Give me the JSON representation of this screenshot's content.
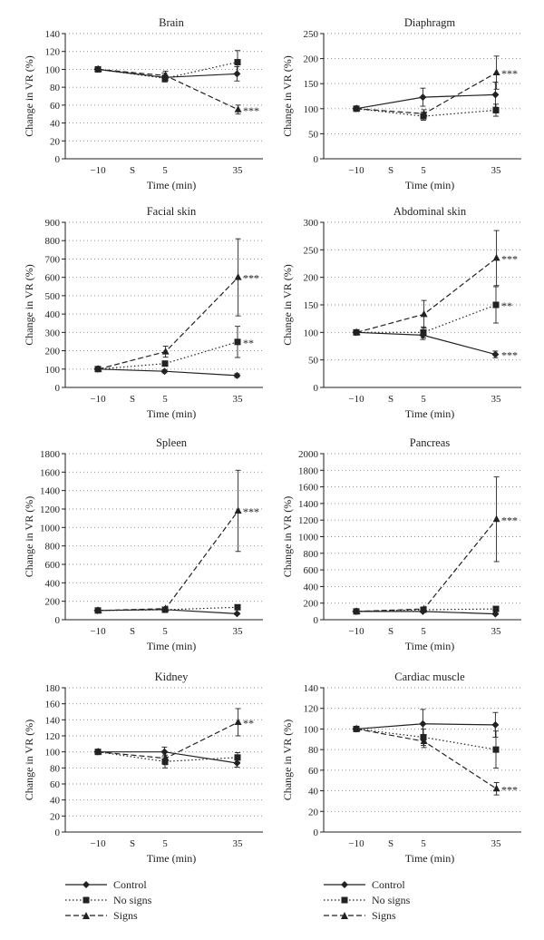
{
  "chart_data": [
    {
      "type": "line",
      "title": "Brain",
      "xlabel": "Time (min)",
      "ylabel": "Change in VR (%)",
      "ylim": [
        0,
        140
      ],
      "yticks": [
        0,
        20,
        40,
        60,
        80,
        100,
        120,
        140
      ],
      "x_ticks": [
        "−10",
        "S",
        "5",
        "35"
      ],
      "series": [
        {
          "name": "Control",
          "x": [
            "−10",
            "5",
            "35"
          ],
          "values": [
            100,
            91,
            95
          ],
          "err": [
            null,
            5,
            8
          ]
        },
        {
          "name": "No signs",
          "x": [
            "−10",
            "5",
            "35"
          ],
          "values": [
            100,
            90,
            108
          ],
          "err": [
            null,
            4,
            13
          ]
        },
        {
          "name": "Signs",
          "x": [
            "−10",
            "5",
            "35"
          ],
          "values": [
            100,
            93,
            55
          ],
          "err": [
            null,
            5,
            5
          ]
        }
      ],
      "annotations": [
        {
          "text": "***",
          "x": "35",
          "y": 55
        }
      ]
    },
    {
      "type": "line",
      "title": "Diaphragm",
      "xlabel": "Time (min)",
      "ylabel": "Change in VR (%)",
      "ylim": [
        0,
        250
      ],
      "yticks": [
        0,
        50,
        100,
        150,
        200,
        250
      ],
      "x_ticks": [
        "−10",
        "S",
        "5",
        "35"
      ],
      "series": [
        {
          "name": "Control",
          "x": [
            "−10",
            "5",
            "35"
          ],
          "values": [
            100,
            123,
            128
          ],
          "err": [
            null,
            18,
            25
          ]
        },
        {
          "name": "No signs",
          "x": [
            "−10",
            "5",
            "35"
          ],
          "values": [
            100,
            85,
            97
          ],
          "err": [
            null,
            8,
            12
          ]
        },
        {
          "name": "Signs",
          "x": [
            "−10",
            "5",
            "35"
          ],
          "values": [
            100,
            90,
            172
          ],
          "err": [
            null,
            8,
            33
          ]
        }
      ],
      "annotations": [
        {
          "text": "***",
          "x": "35",
          "y": 172
        }
      ]
    },
    {
      "type": "line",
      "title": "Facial skin",
      "xlabel": "Time (min)",
      "ylabel": "Change in VR (%)",
      "ylim": [
        0,
        900
      ],
      "yticks": [
        0,
        100,
        200,
        300,
        400,
        500,
        600,
        700,
        800,
        900
      ],
      "x_ticks": [
        "−10",
        "S",
        "5",
        "35"
      ],
      "series": [
        {
          "name": "Control",
          "x": [
            "−10",
            "5",
            "35"
          ],
          "values": [
            100,
            88,
            65
          ],
          "err": [
            null,
            8,
            10
          ]
        },
        {
          "name": "No signs",
          "x": [
            "−10",
            "5",
            "35"
          ],
          "values": [
            100,
            130,
            248
          ],
          "err": [
            null,
            12,
            85
          ]
        },
        {
          "name": "Signs",
          "x": [
            "−10",
            "5",
            "35"
          ],
          "values": [
            100,
            195,
            600
          ],
          "err": [
            null,
            30,
            210
          ]
        }
      ],
      "annotations": [
        {
          "text": "***",
          "x": "35",
          "y": 600
        },
        {
          "text": "**",
          "x": "35",
          "y": 248
        }
      ]
    },
    {
      "type": "line",
      "title": "Abdominal skin",
      "xlabel": "Time (min)",
      "ylabel": "Change in VR (%)",
      "ylim": [
        0,
        300
      ],
      "yticks": [
        0,
        50,
        100,
        150,
        200,
        250,
        300
      ],
      "x_ticks": [
        "−10",
        "S",
        "5",
        "35"
      ],
      "series": [
        {
          "name": "Control",
          "x": [
            "−10",
            "5",
            "35"
          ],
          "values": [
            100,
            95,
            60
          ],
          "err": [
            null,
            8,
            6
          ]
        },
        {
          "name": "No signs",
          "x": [
            "−10",
            "5",
            "35"
          ],
          "values": [
            100,
            100,
            150
          ],
          "err": [
            null,
            10,
            33
          ]
        },
        {
          "name": "Signs",
          "x": [
            "−10",
            "5",
            "35"
          ],
          "values": [
            100,
            133,
            235
          ],
          "err": [
            null,
            25,
            50
          ]
        }
      ],
      "annotations": [
        {
          "text": "***",
          "x": "35",
          "y": 235
        },
        {
          "text": "**",
          "x": "35",
          "y": 150
        },
        {
          "text": "***",
          "x": "35",
          "y": 60
        }
      ]
    },
    {
      "type": "line",
      "title": "Spleen",
      "xlabel": "Time (min)",
      "ylabel": "Change in VR (%)",
      "ylim": [
        0,
        1800
      ],
      "yticks": [
        0,
        200,
        400,
        600,
        800,
        1000,
        1200,
        1400,
        1600,
        1800
      ],
      "x_ticks": [
        "−10",
        "S",
        "5",
        "35"
      ],
      "series": [
        {
          "name": "Control",
          "x": [
            "−10",
            "5",
            "35"
          ],
          "values": [
            100,
            110,
            65
          ],
          "err": [
            null,
            10,
            10
          ]
        },
        {
          "name": "No signs",
          "x": [
            "−10",
            "5",
            "35"
          ],
          "values": [
            100,
            108,
            135
          ],
          "err": [
            null,
            10,
            20
          ]
        },
        {
          "name": "Signs",
          "x": [
            "−10",
            "5",
            "35"
          ],
          "values": [
            100,
            120,
            1180
          ],
          "err": [
            null,
            15,
            440
          ]
        }
      ],
      "annotations": [
        {
          "text": "***",
          "x": "35",
          "y": 1180
        }
      ]
    },
    {
      "type": "line",
      "title": "Pancreas",
      "xlabel": "Time (min)",
      "ylabel": "Change in VR (%)",
      "ylim": [
        0,
        2000
      ],
      "yticks": [
        0,
        200,
        400,
        600,
        800,
        1000,
        1200,
        1400,
        1600,
        1800,
        2000
      ],
      "x_ticks": [
        "−10",
        "S",
        "5",
        "35"
      ],
      "series": [
        {
          "name": "Control",
          "x": [
            "−10",
            "5",
            "35"
          ],
          "values": [
            100,
            100,
            70
          ],
          "err": [
            null,
            10,
            10
          ]
        },
        {
          "name": "No signs",
          "x": [
            "−10",
            "5",
            "35"
          ],
          "values": [
            100,
            120,
            130
          ],
          "err": [
            null,
            15,
            20
          ]
        },
        {
          "name": "Signs",
          "x": [
            "−10",
            "5",
            "35"
          ],
          "values": [
            100,
            130,
            1210
          ],
          "err": [
            null,
            15,
            510
          ]
        }
      ],
      "annotations": [
        {
          "text": "***",
          "x": "35",
          "y": 1210
        }
      ]
    },
    {
      "type": "line",
      "title": "Kidney",
      "xlabel": "Time (min)",
      "ylabel": "Change in VR (%)",
      "ylim": [
        0,
        180
      ],
      "yticks": [
        0,
        20,
        40,
        60,
        80,
        100,
        120,
        140,
        160,
        180
      ],
      "x_ticks": [
        "−10",
        "S",
        "5",
        "35"
      ],
      "series": [
        {
          "name": "Control",
          "x": [
            "−10",
            "5",
            "35"
          ],
          "values": [
            100,
            100,
            86
          ],
          "err": [
            null,
            6,
            5
          ]
        },
        {
          "name": "No signs",
          "x": [
            "−10",
            "5",
            "35"
          ],
          "values": [
            100,
            88,
            93
          ],
          "err": [
            null,
            8,
            6
          ]
        },
        {
          "name": "Signs",
          "x": [
            "−10",
            "5",
            "35"
          ],
          "values": [
            100,
            92,
            137
          ],
          "err": [
            null,
            8,
            17
          ]
        }
      ],
      "annotations": [
        {
          "text": "**",
          "x": "35",
          "y": 137
        }
      ]
    },
    {
      "type": "line",
      "title": "Cardiac muscle",
      "xlabel": "Time (min)",
      "ylabel": "Change in VR (%)",
      "ylim": [
        0,
        140
      ],
      "yticks": [
        0,
        20,
        40,
        60,
        80,
        100,
        120,
        140
      ],
      "x_ticks": [
        "−10",
        "S",
        "5",
        "35"
      ],
      "series": [
        {
          "name": "Control",
          "x": [
            "−10",
            "5",
            "35"
          ],
          "values": [
            100,
            105,
            104
          ],
          "err": [
            null,
            14,
            12
          ]
        },
        {
          "name": "No signs",
          "x": [
            "−10",
            "5",
            "35"
          ],
          "values": [
            100,
            92,
            80
          ],
          "err": [
            null,
            8,
            18
          ]
        },
        {
          "name": "Signs",
          "x": [
            "−10",
            "5",
            "35"
          ],
          "values": [
            100,
            88,
            42
          ],
          "err": [
            null,
            6,
            6
          ]
        }
      ],
      "annotations": [
        {
          "text": "***",
          "x": "35",
          "y": 42
        }
      ]
    }
  ],
  "legend": {
    "items": [
      {
        "name": "Control",
        "style": "solid",
        "marker": "diamond"
      },
      {
        "name": "No signs",
        "style": "dotted",
        "marker": "square"
      },
      {
        "name": "Signs",
        "style": "dashed",
        "marker": "triangle"
      }
    ]
  },
  "colors": {
    "line": "#222222",
    "grid": "#888888",
    "background": "#ffffff"
  }
}
